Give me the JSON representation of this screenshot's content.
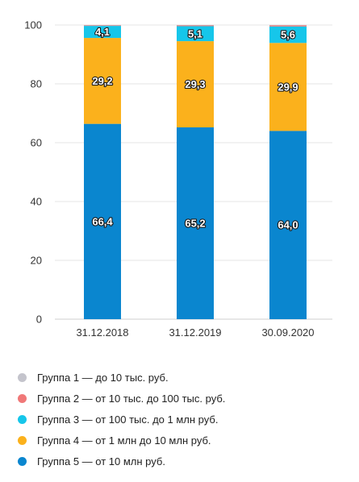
{
  "chart_data": {
    "type": "bar",
    "stacked": true,
    "categories": [
      "31.12.2018",
      "31.12.2019",
      "30.09.2020"
    ],
    "ylim": [
      0,
      100
    ],
    "yticks": [
      "0",
      "20",
      "40",
      "60",
      "80",
      "100"
    ],
    "grid": true,
    "legend_position": "bottom",
    "series": [
      {
        "name": "Группа 5 — от 10 млн руб.",
        "color": "#0a86cf",
        "values": [
          66.4,
          65.2,
          64.0
        ],
        "labels": [
          "66,4",
          "65,2",
          "64,0"
        ]
      },
      {
        "name": "Группа 4 — от 1 млн до 10 млн руб.",
        "color": "#fbb11c",
        "values": [
          29.2,
          29.3,
          29.9
        ],
        "labels": [
          "29,2",
          "29,3",
          "29,9"
        ]
      },
      {
        "name": "Группа 3 — от 100 тыс. до 1 млн руб.",
        "color": "#16c6ea",
        "values": [
          4.1,
          5.1,
          5.6
        ],
        "labels": [
          "4,1",
          "5,1",
          "5,6"
        ]
      },
      {
        "name": "Группа 2 — от 10 тыс. до 100 тыс. руб.",
        "color": "#f07878",
        "values": [
          0.2,
          0.3,
          0.4
        ],
        "labels": [
          "",
          "",
          ""
        ]
      },
      {
        "name": "Группа 1 — до 10 тыс. руб.",
        "color": "#c4c4cc",
        "values": [
          0.1,
          0.1,
          0.1
        ],
        "labels": [
          "",
          "",
          ""
        ]
      }
    ]
  }
}
